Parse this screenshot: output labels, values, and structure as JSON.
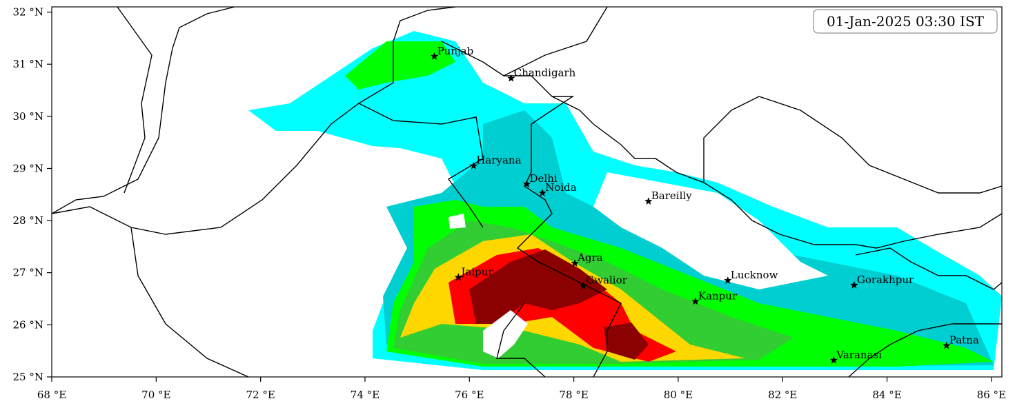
{
  "map": {
    "timestamp": "01-Jan-2025 03:30 IST",
    "xlim": [
      68,
      86.2
    ],
    "ylim": [
      25,
      32.1
    ],
    "xticks": [
      {
        "value": 68,
        "label": "68 °E"
      },
      {
        "value": 70,
        "label": "70 °E"
      },
      {
        "value": 72,
        "label": "72 °E"
      },
      {
        "value": 74,
        "label": "74 °E"
      },
      {
        "value": 76,
        "label": "76 °E"
      },
      {
        "value": 78,
        "label": "78 °E"
      },
      {
        "value": 80,
        "label": "80 °E"
      },
      {
        "value": 82,
        "label": "82 °E"
      },
      {
        "value": 84,
        "label": "84 °E"
      },
      {
        "value": 86,
        "label": "86 °E"
      }
    ],
    "yticks": [
      {
        "value": 25,
        "label": "25 °N"
      },
      {
        "value": 26,
        "label": "26 °N"
      },
      {
        "value": 27,
        "label": "27 °N"
      },
      {
        "value": 28,
        "label": "28 °N"
      },
      {
        "value": 29,
        "label": "29 °N"
      },
      {
        "value": 30,
        "label": "30 °N"
      },
      {
        "value": 31,
        "label": "31 °N"
      },
      {
        "value": 32,
        "label": "32 °N"
      }
    ],
    "cities": [
      {
        "name": "Punjab",
        "lon": 75.33,
        "lat": 31.15
      },
      {
        "name": "Chandigarh",
        "lon": 76.8,
        "lat": 30.73
      },
      {
        "name": "Haryana",
        "lon": 76.08,
        "lat": 29.05
      },
      {
        "name": "Delhi",
        "lon": 77.1,
        "lat": 28.7
      },
      {
        "name": "Noida",
        "lon": 77.4,
        "lat": 28.53
      },
      {
        "name": "Bareilly",
        "lon": 79.43,
        "lat": 28.37
      },
      {
        "name": "Agra",
        "lon": 78.02,
        "lat": 27.18
      },
      {
        "name": "Jaipur",
        "lon": 75.79,
        "lat": 26.91
      },
      {
        "name": "Gwalior",
        "lon": 78.18,
        "lat": 26.75
      },
      {
        "name": "Lucknow",
        "lon": 80.95,
        "lat": 26.85
      },
      {
        "name": "Kanpur",
        "lon": 80.33,
        "lat": 26.45
      },
      {
        "name": "Gorakhpur",
        "lon": 83.37,
        "lat": 26.76
      },
      {
        "name": "Varanasi",
        "lon": 82.98,
        "lat": 25.32
      },
      {
        "name": "Patna",
        "lon": 85.14,
        "lat": 25.6
      }
    ]
  }
}
